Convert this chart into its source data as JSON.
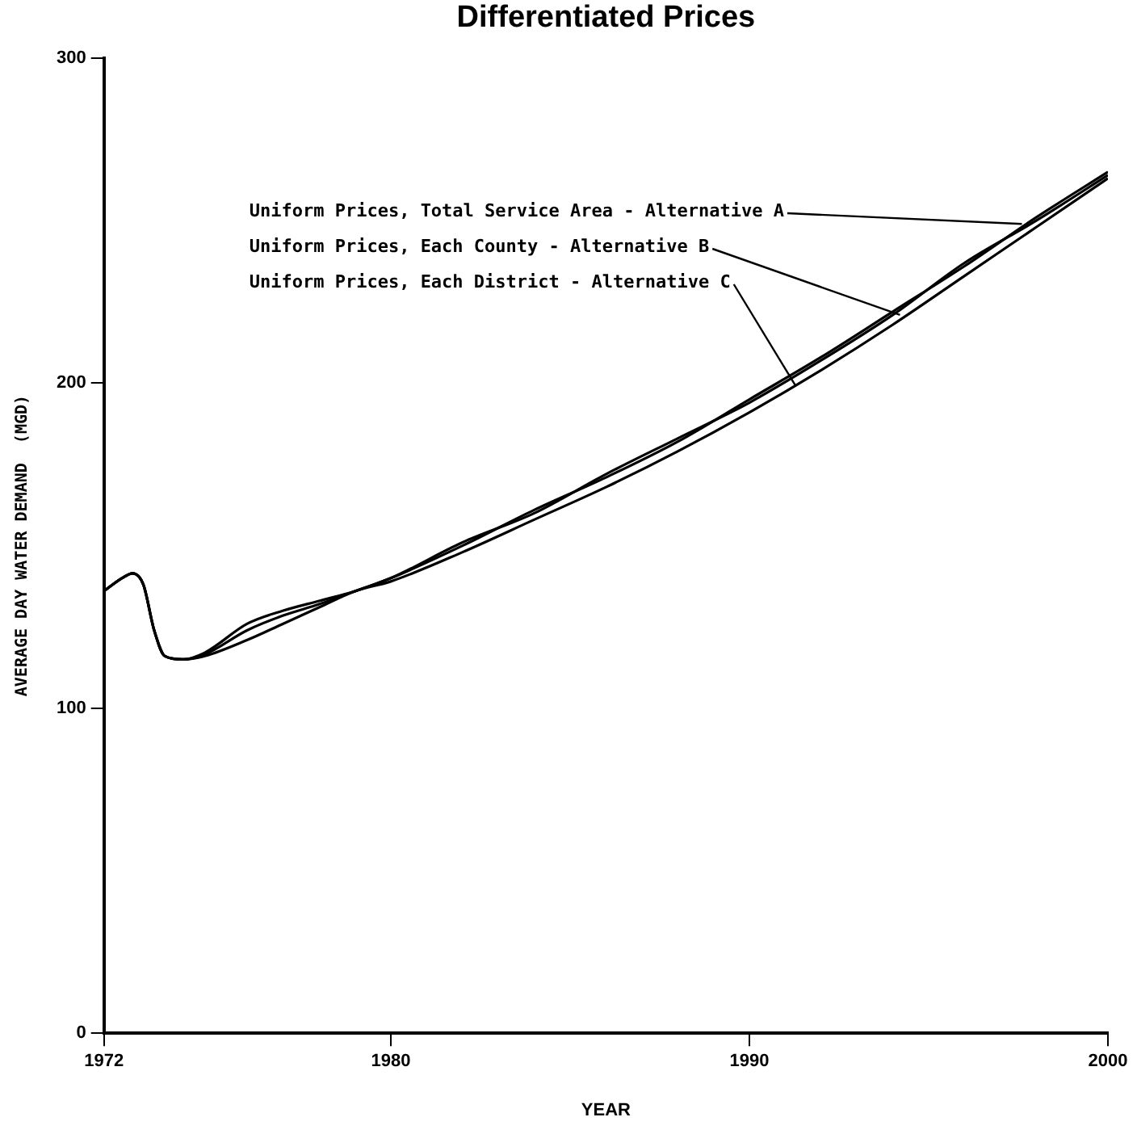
{
  "chart_data": {
    "type": "line",
    "title": "Differentiated Prices",
    "xlabel": "YEAR",
    "ylabel": "AVERAGE DAY WATER DEMAND  (MGD)",
    "x": [
      1972,
      1972.5,
      1972.8,
      1973.1,
      1973.4,
      1973.7,
      1974.2,
      1974.8,
      1976,
      1977,
      1978,
      1979,
      1980,
      1982,
      1984,
      1986,
      1988,
      1990,
      1992,
      1994,
      1996,
      1998,
      2000
    ],
    "series": [
      {
        "color": "#000000",
        "values": [
          136,
          140,
          141.5,
          138,
          124,
          116,
          115,
          117,
          126,
          130,
          133,
          136,
          140,
          150,
          161,
          171,
          182,
          195,
          208,
          222,
          236,
          251,
          265
        ]
      },
      {
        "color": "#000000",
        "values": [
          136,
          140,
          141.5,
          138,
          124,
          116,
          115,
          116.5,
          124,
          128.5,
          132,
          136,
          140,
          151,
          160,
          172,
          183,
          194,
          207,
          221,
          237,
          250,
          264
        ]
      },
      {
        "color": "#000000",
        "values": [
          136,
          140,
          141.5,
          138,
          124,
          116,
          115,
          116,
          121,
          126,
          131,
          136,
          139,
          148,
          158,
          168,
          179,
          191,
          204,
          218,
          233,
          248,
          263
        ]
      }
    ],
    "annotations": [
      {
        "text": "Uniform Prices, Total Service Area - Alternative A",
        "x": 1997.6,
        "y": 249
      },
      {
        "text": "Uniform Prices, Each County - Alternative B",
        "x": 1994.2,
        "y": 221
      },
      {
        "text": "Uniform Prices, Each District - Alternative C",
        "x": 1991.3,
        "y": 199
      }
    ],
    "xlim": [
      1972,
      2000
    ],
    "xticks": [
      1972,
      1980,
      1990,
      2000
    ],
    "ylim": [
      0,
      300
    ],
    "yticks": [
      0,
      100,
      200,
      300
    ],
    "grid": false,
    "legend": false,
    "marker": "none",
    "line_style": "solid"
  }
}
